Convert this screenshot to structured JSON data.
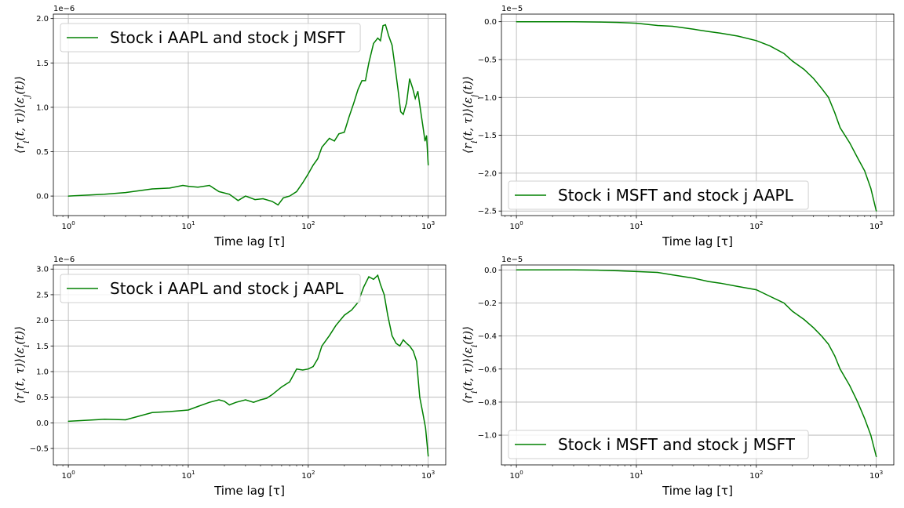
{
  "figure": {
    "line_color": "#008000",
    "grid_color": "#b0b0b0",
    "x_scale": "log",
    "grid": true
  },
  "chart_data": [
    {
      "type": "line",
      "legend": "Stock i AAPL and stock j MSFT",
      "legend_position": "upper-left",
      "xlabel": "Time lag [τ]",
      "ylabel": "⟨r_i(t, τ)⟩⟨ε_j(t)⟩",
      "offset_label": "1e−6",
      "xlim": [
        0.75,
        1400
      ],
      "ylim": [
        -0.22,
        2.05
      ],
      "xticks": [
        "10^0",
        "10^1",
        "10^2",
        "10^3"
      ],
      "yticks": [
        0.0,
        0.5,
        1.0,
        1.5,
        2.0
      ],
      "ytick_labels": [
        "0.0",
        "0.5",
        "1.0",
        "1.5",
        "2.0"
      ],
      "series": [
        {
          "x": [
            1,
            2,
            3,
            5,
            7,
            9,
            10,
            12,
            15,
            18,
            22,
            26,
            30,
            36,
            42,
            50,
            56,
            62,
            70,
            80,
            90,
            100,
            110,
            120,
            130,
            150,
            165,
            180,
            200,
            220,
            240,
            260,
            280,
            300,
            320,
            350,
            380,
            400,
            420,
            440,
            470,
            500,
            530,
            560,
            590,
            620,
            660,
            700,
            740,
            780,
            820,
            860,
            900,
            940,
            970,
            1000
          ],
          "y": [
            0.0,
            0.02,
            0.04,
            0.08,
            0.09,
            0.12,
            0.11,
            0.1,
            0.12,
            0.05,
            0.02,
            -0.05,
            0.0,
            -0.04,
            -0.03,
            -0.06,
            -0.1,
            -0.02,
            0.0,
            0.05,
            0.15,
            0.25,
            0.35,
            0.42,
            0.55,
            0.65,
            0.62,
            0.7,
            0.72,
            0.9,
            1.05,
            1.2,
            1.3,
            1.3,
            1.5,
            1.72,
            1.78,
            1.75,
            1.92,
            1.93,
            1.8,
            1.7,
            1.45,
            1.2,
            0.95,
            0.92,
            1.05,
            1.32,
            1.22,
            1.1,
            1.18,
            0.98,
            0.8,
            0.62,
            0.68,
            0.35
          ]
        }
      ]
    },
    {
      "type": "line",
      "legend": "Stock i MSFT and stock j AAPL",
      "legend_position": "lower-left",
      "xlabel": "Time lag [τ]",
      "ylabel": "⟨r_i(t, τ)⟩⟨ε_j(t)⟩",
      "offset_label": "1e−5",
      "xlim": [
        0.75,
        1400
      ],
      "ylim": [
        -2.56,
        0.1
      ],
      "xticks": [
        "10^0",
        "10^1",
        "10^2",
        "10^3"
      ],
      "yticks": [
        0.0,
        -0.5,
        -1.0,
        -1.5,
        -2.0,
        -2.5
      ],
      "ytick_labels": [
        "0.0",
        "−0.5",
        "−1.0",
        "−1.5",
        "−2.0",
        "−2.5"
      ],
      "series": [
        {
          "x": [
            1,
            2,
            3,
            5,
            7,
            10,
            15,
            20,
            30,
            40,
            50,
            70,
            100,
            130,
            170,
            200,
            250,
            300,
            350,
            400,
            450,
            500,
            600,
            700,
            800,
            900,
            1000
          ],
          "y": [
            0.0,
            0.0,
            0.0,
            -0.005,
            -0.01,
            -0.02,
            -0.05,
            -0.06,
            -0.1,
            -0.13,
            -0.15,
            -0.19,
            -0.25,
            -0.32,
            -0.42,
            -0.52,
            -0.63,
            -0.75,
            -0.88,
            -1.0,
            -1.2,
            -1.4,
            -1.6,
            -1.8,
            -1.97,
            -2.2,
            -2.5
          ]
        }
      ]
    },
    {
      "type": "line",
      "legend": "Stock i AAPL and stock j AAPL",
      "legend_position": "upper-left",
      "xlabel": "Time lag [τ]",
      "ylabel": "⟨r_i(t, τ)⟩⟨ε_i(t)⟩",
      "offset_label": "1e−6",
      "xlim": [
        0.75,
        1400
      ],
      "ylim": [
        -0.82,
        3.08
      ],
      "xticks": [
        "10^0",
        "10^1",
        "10^2",
        "10^3"
      ],
      "yticks": [
        3.0,
        2.5,
        2.0,
        1.5,
        1.0,
        0.5,
        0.0,
        -0.5
      ],
      "ytick_labels": [
        "3.0",
        "2.5",
        "2.0",
        "1.5",
        "1.0",
        "0.5",
        "0.0",
        "−0.5"
      ],
      "series": [
        {
          "x": [
            1,
            2,
            3,
            5,
            7,
            10,
            12,
            15,
            18,
            20,
            22,
            25,
            30,
            35,
            40,
            45,
            50,
            60,
            70,
            80,
            90,
            100,
            110,
            120,
            130,
            150,
            170,
            200,
            230,
            260,
            290,
            320,
            350,
            380,
            400,
            430,
            460,
            500,
            540,
            580,
            620,
            660,
            700,
            750,
            800,
            850,
            900,
            950,
            1000
          ],
          "y": [
            0.03,
            0.07,
            0.06,
            0.2,
            0.22,
            0.25,
            0.32,
            0.4,
            0.45,
            0.42,
            0.35,
            0.4,
            0.45,
            0.4,
            0.45,
            0.48,
            0.55,
            0.7,
            0.8,
            1.05,
            1.03,
            1.05,
            1.1,
            1.25,
            1.5,
            1.7,
            1.9,
            2.1,
            2.2,
            2.35,
            2.65,
            2.85,
            2.8,
            2.88,
            2.7,
            2.5,
            2.1,
            1.7,
            1.55,
            1.5,
            1.62,
            1.55,
            1.5,
            1.4,
            1.2,
            0.5,
            0.2,
            -0.1,
            -0.65
          ]
        }
      ]
    },
    {
      "type": "line",
      "legend": "Stock i MSFT and stock j MSFT",
      "legend_position": "lower-left",
      "xlabel": "Time lag [τ]",
      "ylabel": "⟨r_i(t, τ)⟩⟨ε_i(t)⟩",
      "offset_label": "1e−5",
      "xlim": [
        0.75,
        1400
      ],
      "ylim": [
        -1.18,
        0.03
      ],
      "xticks": [
        "10^0",
        "10^1",
        "10^2",
        "10^3"
      ],
      "yticks": [
        0.0,
        -0.2,
        -0.4,
        -0.6,
        -0.8,
        -1.0
      ],
      "ytick_labels": [
        "0.0",
        "−0.2",
        "−0.4",
        "−0.6",
        "−0.8",
        "−1.0"
      ],
      "series": [
        {
          "x": [
            1,
            2,
            3,
            5,
            7,
            10,
            15,
            20,
            30,
            40,
            50,
            70,
            100,
            130,
            170,
            200,
            250,
            300,
            350,
            400,
            450,
            500,
            600,
            700,
            800,
            900,
            1000
          ],
          "y": [
            0.0,
            0.0,
            0.0,
            -0.002,
            -0.005,
            -0.01,
            -0.015,
            -0.03,
            -0.05,
            -0.07,
            -0.08,
            -0.1,
            -0.12,
            -0.16,
            -0.2,
            -0.25,
            -0.3,
            -0.35,
            -0.4,
            -0.45,
            -0.52,
            -0.6,
            -0.7,
            -0.8,
            -0.9,
            -1.0,
            -1.13
          ]
        }
      ]
    }
  ]
}
